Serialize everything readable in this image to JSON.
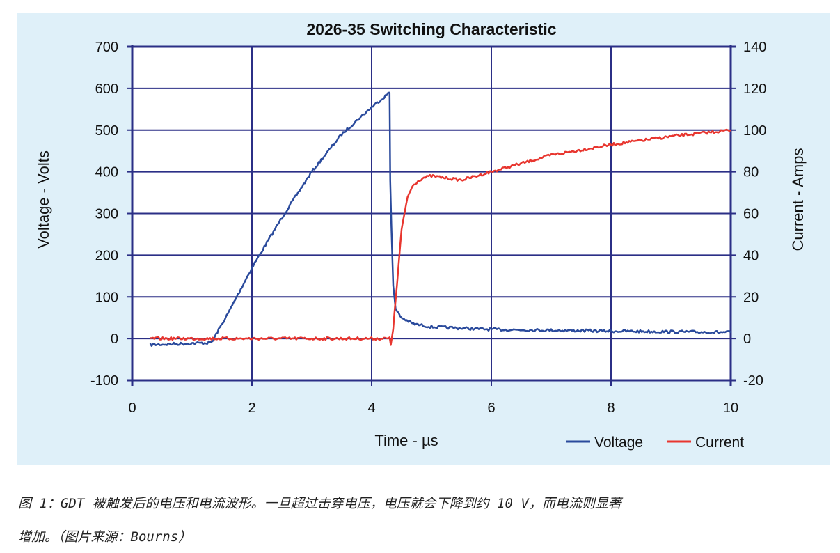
{
  "chart_data": {
    "type": "line",
    "title": "2026-35 Switching Characteristic",
    "xlabel": "Time - µs",
    "ylabel": "Voltage - Volts",
    "y2label": "Current - Amps",
    "xlim": [
      0,
      10
    ],
    "ylim": [
      -100,
      700
    ],
    "y2lim": [
      -20,
      140
    ],
    "xticks": [
      "0",
      "2",
      "4",
      "6",
      "8",
      "10"
    ],
    "yticks": [
      "-100",
      "0",
      "100",
      "200",
      "300",
      "400",
      "500",
      "600",
      "700"
    ],
    "y2ticks": [
      "-20",
      "0",
      "20",
      "40",
      "60",
      "80",
      "100",
      "120",
      "140"
    ],
    "grid": true,
    "legend_position": "bottom-right",
    "series": [
      {
        "name": "Voltage",
        "axis": "left",
        "color": "#2a4a9c",
        "x": [
          0.3,
          1.3,
          1.35,
          1.4,
          1.6,
          2.0,
          2.5,
          3.0,
          3.5,
          4.0,
          4.3,
          4.31,
          4.33,
          4.36,
          4.4,
          4.5,
          4.7,
          5.0,
          6.0,
          8.0,
          10.0
        ],
        "y": [
          -15,
          -10,
          -5,
          10,
          60,
          170,
          290,
          400,
          490,
          555,
          590,
          380,
          270,
          130,
          70,
          50,
          35,
          28,
          22,
          18,
          15
        ]
      },
      {
        "name": "Current",
        "axis": "right",
        "color": "#e8362f",
        "x": [
          0.3,
          4.3,
          4.32,
          4.36,
          4.4,
          4.5,
          4.6,
          4.7,
          4.85,
          5.0,
          5.5,
          6.0,
          7.0,
          8.0,
          9.0,
          10.0
        ],
        "y": [
          0,
          0,
          -3,
          5,
          18,
          52,
          68,
          74,
          77,
          78,
          76,
          80,
          88,
          93,
          97,
          100
        ]
      }
    ]
  },
  "caption": {
    "line1": "图 1：GDT 被触发后的电压和电流波形。一旦超过击穿电压，电压就会下降到约 10 V，而电流则显著",
    "line2": "增加。（图片来源：Bourns）"
  }
}
